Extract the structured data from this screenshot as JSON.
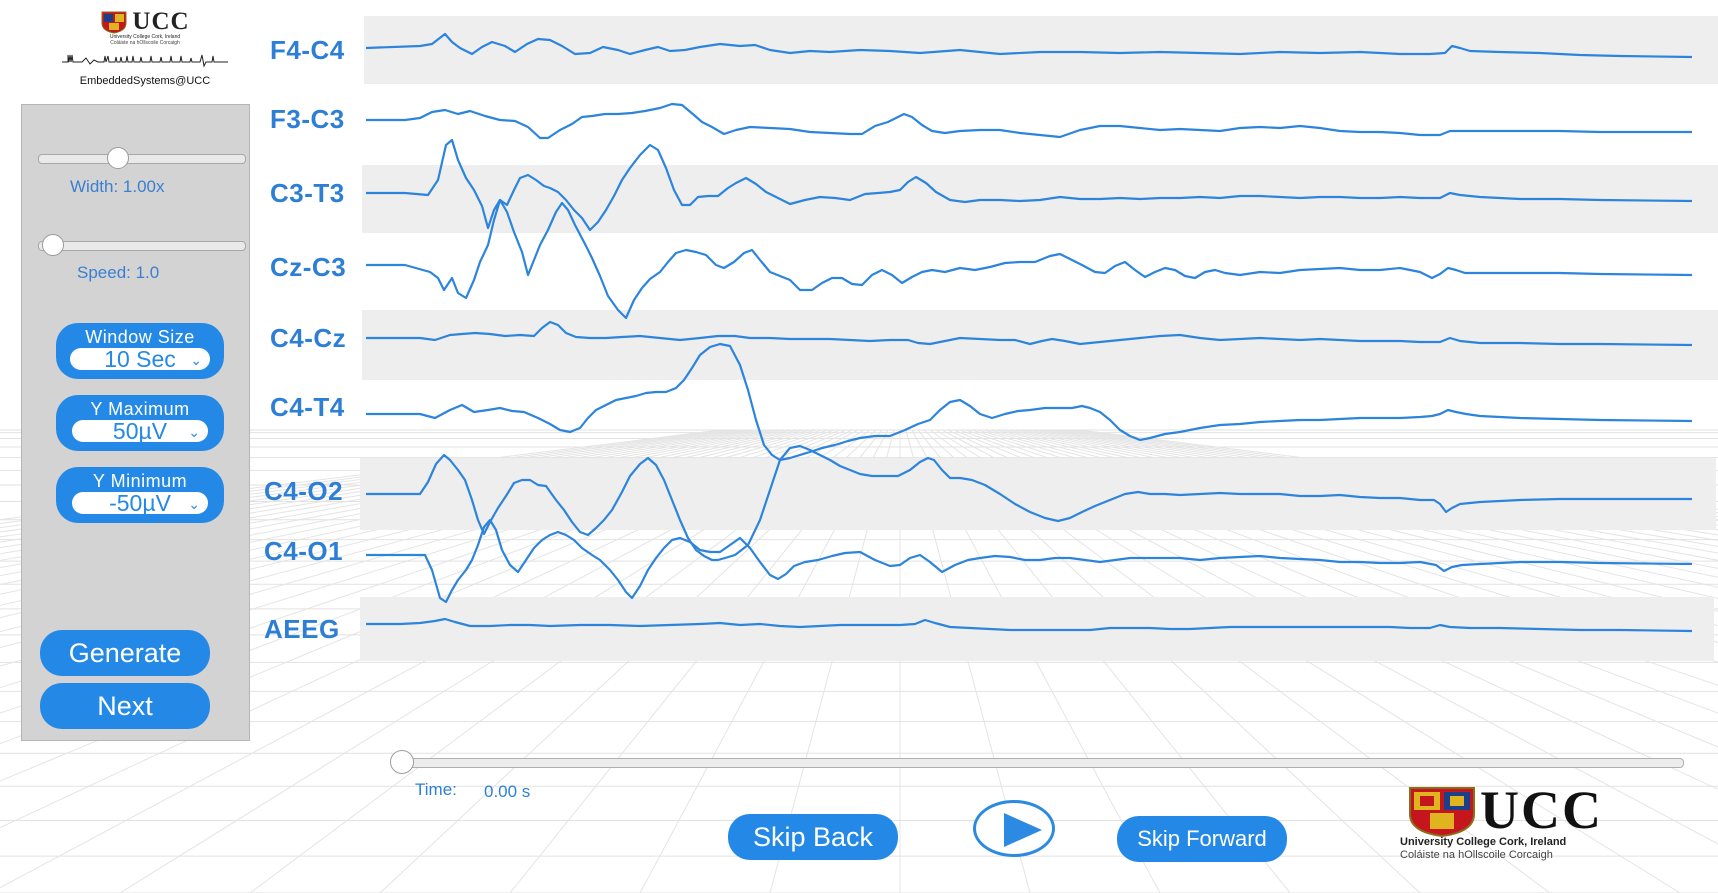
{
  "logos": {
    "top": {
      "title": "UCC",
      "subtitle1": "University College Cork, Ireland",
      "subtitle2": "Coláiste na hOllscoile Corcaigh",
      "group": "EmbeddedSystems@UCC"
    },
    "bottom": {
      "title": "UCC",
      "line1": "University College Cork, Ireland",
      "line2": "Coláiste na hOllscoile Corcaigh"
    }
  },
  "panel": {
    "width_slider": {
      "label": "Width: 1.00x",
      "value": 1.0,
      "fraction": 0.33
    },
    "speed_slider": {
      "label": "Speed: 1.0",
      "value": 1.0,
      "fraction": 0.1
    },
    "window_size": {
      "title": "Window Size",
      "value": "10 Sec"
    },
    "y_max": {
      "title": "Y Maximum",
      "value": "50µV"
    },
    "y_min": {
      "title": "Y Minimum",
      "value": "-50µV"
    },
    "generate_label": "Generate",
    "next_label": "Next"
  },
  "channels": [
    "F4-C4",
    "F3-C3",
    "C3-T3",
    "Cz-C3",
    "C4-Cz",
    "C4-T4",
    "C4-O2",
    "C4-O1",
    "AEEG"
  ],
  "playback": {
    "time_label": "Time:",
    "time_value": "0.00 s",
    "progress": 0.0,
    "skip_back_label": "Skip Back",
    "skip_forward_label": "Skip Forward",
    "play_icon": "play-icon"
  },
  "colors": {
    "accent": "#2489e6",
    "trace": "#2c84dc",
    "label": "#2d7fd6",
    "panel_bg": "#d3d3d3",
    "band_bg": "#eeeeee"
  }
}
